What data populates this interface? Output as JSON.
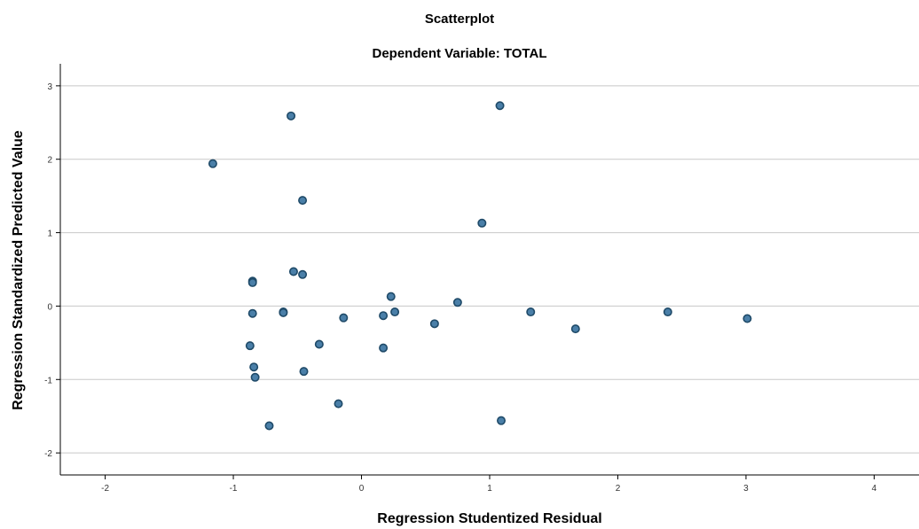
{
  "chart_data": {
    "type": "scatter",
    "title": "Scatterplot",
    "subtitle": "Dependent Variable: TOTAL",
    "xlabel": "Regression Studentized Residual",
    "ylabel": "Regression Standardized Predicted Value",
    "xlim": [
      -2.35,
      4.35
    ],
    "ylim": [
      -2.3,
      3.3
    ],
    "xticks": [
      -2,
      -1,
      0,
      1,
      2,
      3,
      4
    ],
    "yticks": [
      -2,
      -1,
      0,
      1,
      2,
      3
    ],
    "grid": "horizontal",
    "point_fill": "#4a7fa8",
    "point_edge": "#1f4a68",
    "points": [
      {
        "x": 1.08,
        "y": 2.73
      },
      {
        "x": -0.55,
        "y": 2.59
      },
      {
        "x": -1.16,
        "y": 1.94
      },
      {
        "x": -0.46,
        "y": 1.44
      },
      {
        "x": 0.94,
        "y": 1.13
      },
      {
        "x": -0.53,
        "y": 0.47
      },
      {
        "x": -0.46,
        "y": 0.43
      },
      {
        "x": -0.85,
        "y": 0.34
      },
      {
        "x": -0.85,
        "y": 0.32
      },
      {
        "x": 0.23,
        "y": 0.13
      },
      {
        "x": 0.75,
        "y": 0.05
      },
      {
        "x": -0.85,
        "y": -0.1
      },
      {
        "x": -0.61,
        "y": -0.08
      },
      {
        "x": -0.61,
        "y": -0.09
      },
      {
        "x": -0.14,
        "y": -0.16
      },
      {
        "x": 0.17,
        "y": -0.13
      },
      {
        "x": 0.26,
        "y": -0.08
      },
      {
        "x": 0.57,
        "y": -0.24
      },
      {
        "x": 1.32,
        "y": -0.08
      },
      {
        "x": 1.67,
        "y": -0.31
      },
      {
        "x": 2.39,
        "y": -0.08
      },
      {
        "x": 3.01,
        "y": -0.17
      },
      {
        "x": -0.87,
        "y": -0.54
      },
      {
        "x": -0.33,
        "y": -0.52
      },
      {
        "x": 0.17,
        "y": -0.57
      },
      {
        "x": -0.84,
        "y": -0.83
      },
      {
        "x": -0.83,
        "y": -0.97
      },
      {
        "x": -0.45,
        "y": -0.89
      },
      {
        "x": -0.18,
        "y": -1.33
      },
      {
        "x": 1.09,
        "y": -1.56
      },
      {
        "x": -0.72,
        "y": -1.63
      }
    ]
  }
}
